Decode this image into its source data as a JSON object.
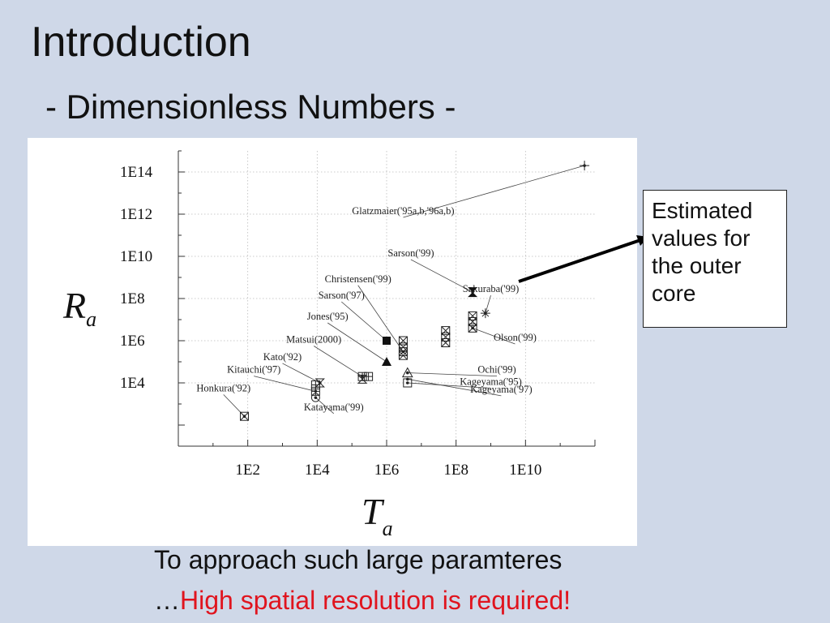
{
  "slide": {
    "title": "Introduction",
    "subtitle": "- Dimensionless Numbers -",
    "callout": "Estimated values for the outer core",
    "bottom_line1": "To approach such large paramteres",
    "bottom_line2_prefix": "…",
    "bottom_line2_emphasis": "High spatial resolution is required!"
  },
  "colors": {
    "background": "#cfd8e8",
    "emphasis": "#e0141e",
    "figure": "#ffffff"
  },
  "chart_data": {
    "type": "scatter",
    "title": "",
    "xlabel": {
      "main": "T",
      "sub": "a"
    },
    "ylabel": {
      "main": "R",
      "sub": "a"
    },
    "x_scale": "log10",
    "y_scale": "log10",
    "xlim": [
      1,
      1000000000000.0
    ],
    "ylim": [
      10.0,
      1000000000000000.0
    ],
    "grid": true,
    "x_ticks": [
      {
        "value": 100,
        "label": "1E2"
      },
      {
        "value": 10000,
        "label": "1E4"
      },
      {
        "value": 1000000,
        "label": "1E6"
      },
      {
        "value": 100000000,
        "label": "1E8"
      },
      {
        "value": 10000000000,
        "label": "1E10"
      }
    ],
    "y_ticks": [
      {
        "value": 10000,
        "label": "1E4"
      },
      {
        "value": 1000000,
        "label": "1E6"
      },
      {
        "value": 100000000,
        "label": "1E8"
      },
      {
        "value": 10000000000,
        "label": "1E10"
      },
      {
        "value": 1000000000000,
        "label": "1E12"
      },
      {
        "value": 100000000000000,
        "label": "1E14"
      }
    ],
    "points": [
      {
        "x": 80,
        "y": 260,
        "marker": "boxx"
      },
      {
        "x": 9000,
        "y": 8000,
        "marker": "boxplus"
      },
      {
        "x": 9000,
        "y": 4000,
        "marker": "boxplus"
      },
      {
        "x": 9000,
        "y": 2000,
        "marker": "circle"
      },
      {
        "x": 12000,
        "y": 10000,
        "marker": "hourglass"
      },
      {
        "x": 200000,
        "y": 20000,
        "marker": "boxplus"
      },
      {
        "x": 200000,
        "y": 15000,
        "marker": "hourglass"
      },
      {
        "x": 300000,
        "y": 20000,
        "marker": "boxplus"
      },
      {
        "x": 1000000,
        "y": 100000,
        "marker": "triangle"
      },
      {
        "x": 1000000,
        "y": 1000000,
        "marker": "square"
      },
      {
        "x": 3000000,
        "y": 1000000,
        "marker": "boxx"
      },
      {
        "x": 3000000,
        "y": 500000,
        "marker": "boxx"
      },
      {
        "x": 3000000,
        "y": 300000,
        "marker": "boxx"
      },
      {
        "x": 3000000,
        "y": 200000,
        "marker": "boxx"
      },
      {
        "x": 4000000,
        "y": 30000,
        "marker": "triangle-open"
      },
      {
        "x": 4000000,
        "y": 10000,
        "marker": "box"
      },
      {
        "x": 50000000,
        "y": 3000000,
        "marker": "boxx"
      },
      {
        "x": 50000000,
        "y": 1500000,
        "marker": "boxx"
      },
      {
        "x": 50000000,
        "y": 800000,
        "marker": "boxx"
      },
      {
        "x": 300000000,
        "y": 15000000,
        "marker": "boxx"
      },
      {
        "x": 300000000,
        "y": 8000000,
        "marker": "boxx"
      },
      {
        "x": 300000000,
        "y": 4000000,
        "marker": "boxx"
      },
      {
        "x": 300000000,
        "y": 200000000,
        "marker": "bowtie"
      },
      {
        "x": 700000000,
        "y": 20000000,
        "marker": "star"
      },
      {
        "x": 500000000000,
        "y": 200000000000000,
        "marker": "plus"
      }
    ],
    "annotations": [
      {
        "text": "Honkura('92)",
        "x": 20,
        "y": 4000,
        "tx": 80,
        "ty": 260
      },
      {
        "text": "Kitauchi('97)",
        "x": 150,
        "y": 30000,
        "tx": 9000,
        "ty": 4000
      },
      {
        "text": "Kato('92)",
        "x": 1000,
        "y": 120000,
        "tx": 12000,
        "ty": 10000
      },
      {
        "text": "Matsui(2000)",
        "x": 8000,
        "y": 800000,
        "tx": 200000,
        "ty": 20000
      },
      {
        "text": "Jones('95)",
        "x": 20000,
        "y": 10000000,
        "tx": 1000000,
        "ty": 100000
      },
      {
        "text": "Sarson('97)",
        "x": 50000,
        "y": 100000000,
        "tx": 1000000,
        "ty": 1000000
      },
      {
        "text": "Christensen('99)",
        "x": 150000,
        "y": 600000000,
        "tx": 3000000,
        "ty": 300000
      },
      {
        "text": "Sarson('99)",
        "x": 5000000,
        "y": 10000000000,
        "tx": 300000000,
        "ty": 200000000
      },
      {
        "text": "Sakuraba('99)",
        "x": 1000000000,
        "y": 200000000,
        "tx": 700000000,
        "ty": 20000000
      },
      {
        "text": "Glatzmaier('95a,b,'96a,b)",
        "x": 3000000,
        "y": 1000000000000,
        "tx": 500000000000,
        "ty": 200000000000000
      },
      {
        "text": "Olson('99)",
        "x": 5000000000,
        "y": 1000000,
        "tx": 300000000,
        "ty": 4000000
      },
      {
        "text": "Ochi('99)",
        "x": 1500000000,
        "y": 30000,
        "tx": 4000000,
        "ty": 30000
      },
      {
        "text": "Kageyama('95)",
        "x": 1000000000,
        "y": 8000,
        "tx": 4000000,
        "ty": 10000
      },
      {
        "text": "Kageyama('97)",
        "x": 2000000000,
        "y": 3500,
        "tx": 4000000,
        "ty": 15000
      },
      {
        "text": "Katayama('99)",
        "x": 30000,
        "y": 500,
        "tx": 9000,
        "ty": 2000
      }
    ]
  }
}
